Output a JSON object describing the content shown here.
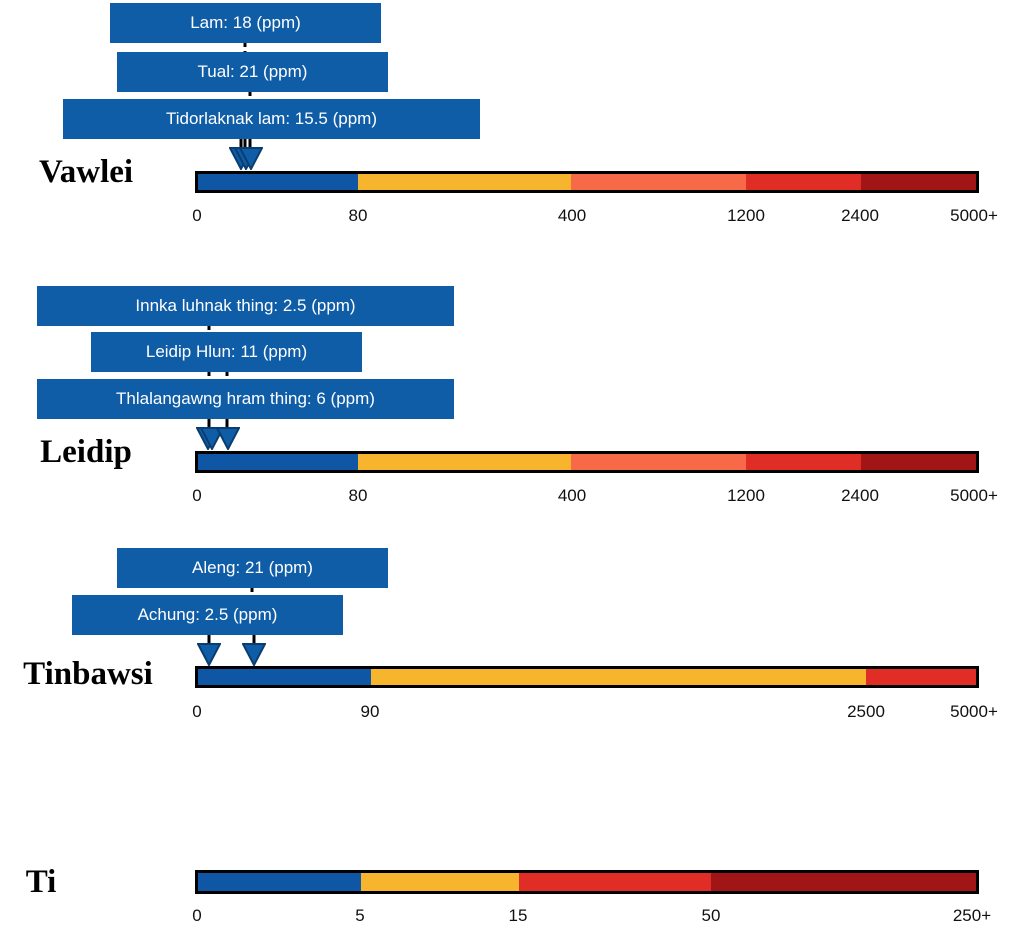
{
  "chart_data": [
    {
      "type": "bar",
      "title": "Vawlei",
      "scale_ticks": [
        "0",
        "80",
        "400",
        "1200",
        "2400",
        "5000+"
      ],
      "bands": [
        {
          "from": "0",
          "to": "80",
          "color": "#0f57a5"
        },
        {
          "from": "80",
          "to": "400",
          "color": "#f7b42d"
        },
        {
          "from": "400",
          "to": "1200",
          "color": "#f86a47"
        },
        {
          "from": "1200",
          "to": "2400",
          "color": "#e02d26"
        },
        {
          "from": "2400",
          "to": "5000+",
          "color": "#a11516"
        }
      ],
      "markers": [
        {
          "label": "Lam: 18 (ppm)",
          "name": "Lam",
          "value": 18,
          "unit": "ppm"
        },
        {
          "label": "Tual: 21 (ppm)",
          "name": "Tual",
          "value": 21,
          "unit": "ppm"
        },
        {
          "label": "Tidorlaknak lam: 15.5 (ppm)",
          "name": "Tidorlaknak lam",
          "value": 15.5,
          "unit": "ppm"
        }
      ]
    },
    {
      "type": "bar",
      "title": "Leidip",
      "scale_ticks": [
        "0",
        "80",
        "400",
        "1200",
        "2400",
        "5000+"
      ],
      "bands": [
        {
          "from": "0",
          "to": "80",
          "color": "#0f57a5"
        },
        {
          "from": "80",
          "to": "400",
          "color": "#f7b42d"
        },
        {
          "from": "400",
          "to": "1200",
          "color": "#f86a47"
        },
        {
          "from": "1200",
          "to": "2400",
          "color": "#e02d26"
        },
        {
          "from": "2400",
          "to": "5000+",
          "color": "#a11516"
        }
      ],
      "markers": [
        {
          "label": "Innka luhnak thing: 2.5 (ppm)",
          "name": "Innka luhnak thing",
          "value": 2.5,
          "unit": "ppm"
        },
        {
          "label": "Leidip Hlun: 11 (ppm)",
          "name": "Leidip Hlun",
          "value": 11,
          "unit": "ppm"
        },
        {
          "label": "Thlalangawng hram thing: 6 (ppm)",
          "name": "Thlalangawng hram thing",
          "value": 6,
          "unit": "ppm"
        }
      ]
    },
    {
      "type": "bar",
      "title": "Tinbawsi",
      "scale_ticks": [
        "0",
        "90",
        "2500",
        "5000+"
      ],
      "bands": [
        {
          "from": "0",
          "to": "90",
          "color": "#0f57a5"
        },
        {
          "from": "90",
          "to": "2500",
          "color": "#f7b42d"
        },
        {
          "from": "2500",
          "to": "5000+",
          "color": "#e02d26"
        }
      ],
      "markers": [
        {
          "label": "Aleng: 21 (ppm)",
          "name": "Aleng",
          "value": 21,
          "unit": "ppm"
        },
        {
          "label": "Achung: 2.5 (ppm)",
          "name": "Achung",
          "value": 2.5,
          "unit": "ppm"
        }
      ]
    },
    {
      "type": "bar",
      "title": "Ti",
      "scale_ticks": [
        "0",
        "5",
        "15",
        "50",
        "250+"
      ],
      "bands": [
        {
          "from": "0",
          "to": "5",
          "color": "#0f57a5"
        },
        {
          "from": "5",
          "to": "15",
          "color": "#f7b42d"
        },
        {
          "from": "15",
          "to": "50",
          "color": "#e02d26"
        },
        {
          "from": "50",
          "to": "250+",
          "color": "#a11516"
        }
      ],
      "markers": []
    }
  ]
}
